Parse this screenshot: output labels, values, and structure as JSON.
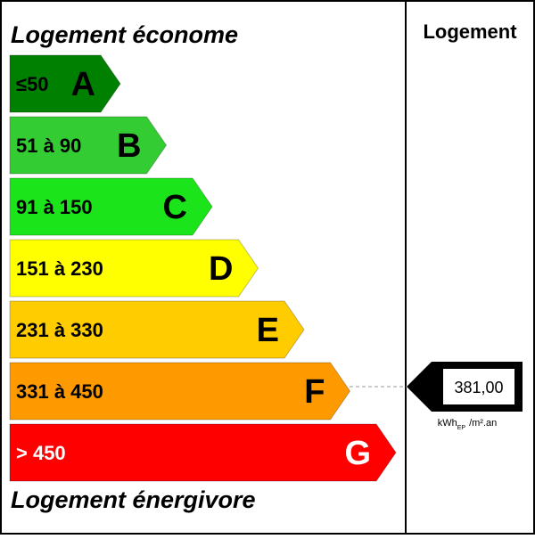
{
  "header": {
    "title_top": "Logement économe",
    "title_bottom": "Logement énergivore",
    "column": "Logement"
  },
  "classes": [
    {
      "range": "≤50",
      "letter": "A",
      "color": "#008000"
    },
    {
      "range": "51 à 90",
      "letter": "B",
      "color": "#33cc33"
    },
    {
      "range": "91 à 150",
      "letter": "C",
      "color": "#1be41b"
    },
    {
      "range": "151 à 230",
      "letter": "D",
      "color": "#ffff00"
    },
    {
      "range": "231 à 330",
      "letter": "E",
      "color": "#ffcc00"
    },
    {
      "range": "331 à 450",
      "letter": "F",
      "color": "#ff9900"
    },
    {
      "range": "> 450",
      "letter": "G",
      "color": "#ff0000"
    }
  ],
  "indicator": {
    "value": "381,00",
    "unit": "kWh",
    "unit_sub": "EP",
    "unit_rest": "/m².an"
  }
}
